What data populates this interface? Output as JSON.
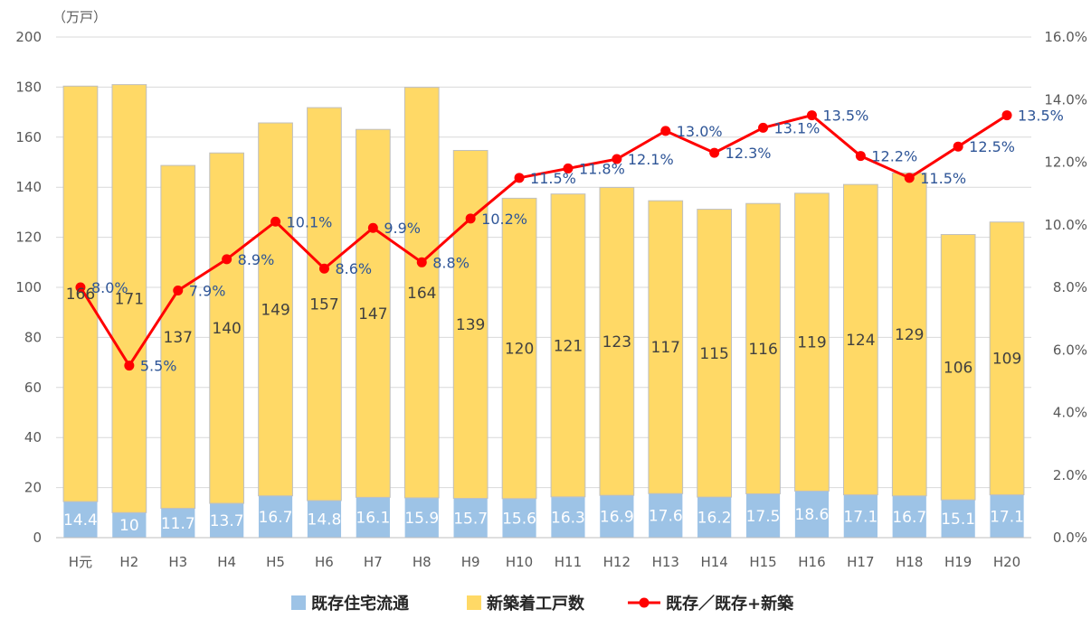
{
  "chart_data": {
    "type": "bar",
    "stacked": true,
    "unit_label": "（万戸）",
    "categories": [
      "H元",
      "H2",
      "H3",
      "H4",
      "H5",
      "H6",
      "H7",
      "H8",
      "H9",
      "H10",
      "H11",
      "H12",
      "H13",
      "H14",
      "H15",
      "H16",
      "H17",
      "H18",
      "H19",
      "H20"
    ],
    "series": [
      {
        "name": "既存住宅流通",
        "kind": "bar",
        "color": "#9dc3e6",
        "values": [
          14.4,
          10,
          11.7,
          13.7,
          16.7,
          14.8,
          16.1,
          15.9,
          15.7,
          15.6,
          16.3,
          16.9,
          17.6,
          16.2,
          17.5,
          18.6,
          17.1,
          16.7,
          15.1,
          17.1
        ]
      },
      {
        "name": "新築着工戸数",
        "kind": "bar",
        "color": "#ffd966",
        "values": [
          166,
          171,
          137,
          140,
          149,
          157,
          147,
          164,
          139,
          120,
          121,
          123,
          117,
          115,
          116,
          119,
          124,
          129,
          106,
          109
        ]
      },
      {
        "name": "既存／既存+新築",
        "kind": "line",
        "axis": "right",
        "color": "#ff0000",
        "values": [
          8.0,
          5.5,
          7.9,
          8.9,
          10.1,
          8.6,
          9.9,
          8.8,
          10.2,
          11.5,
          11.8,
          12.1,
          13.0,
          12.3,
          13.1,
          13.5,
          12.2,
          11.5,
          12.5,
          13.5
        ],
        "labels": [
          "8.0%",
          "5.5%",
          "7.9%",
          "8.9%",
          "10.1%",
          "8.6%",
          "9.9%",
          "8.8%",
          "10.2%",
          "11.5%",
          "11.8%",
          "12.1%",
          "13.0%",
          "12.3%",
          "13.1%",
          "13.5%",
          "12.2%",
          "11.5%",
          "12.5%",
          "13.5%"
        ]
      }
    ],
    "ylim": [
      0,
      200
    ],
    "yticks": [
      0,
      20,
      40,
      60,
      80,
      100,
      120,
      140,
      160,
      180,
      200
    ],
    "y2lim": [
      0,
      16
    ],
    "y2ticks": [
      "0.0%",
      "2.0%",
      "4.0%",
      "6.0%",
      "8.0%",
      "10.0%",
      "12.0%",
      "14.0%",
      "16.0%"
    ],
    "grid": true,
    "legend_position": "bottom"
  }
}
